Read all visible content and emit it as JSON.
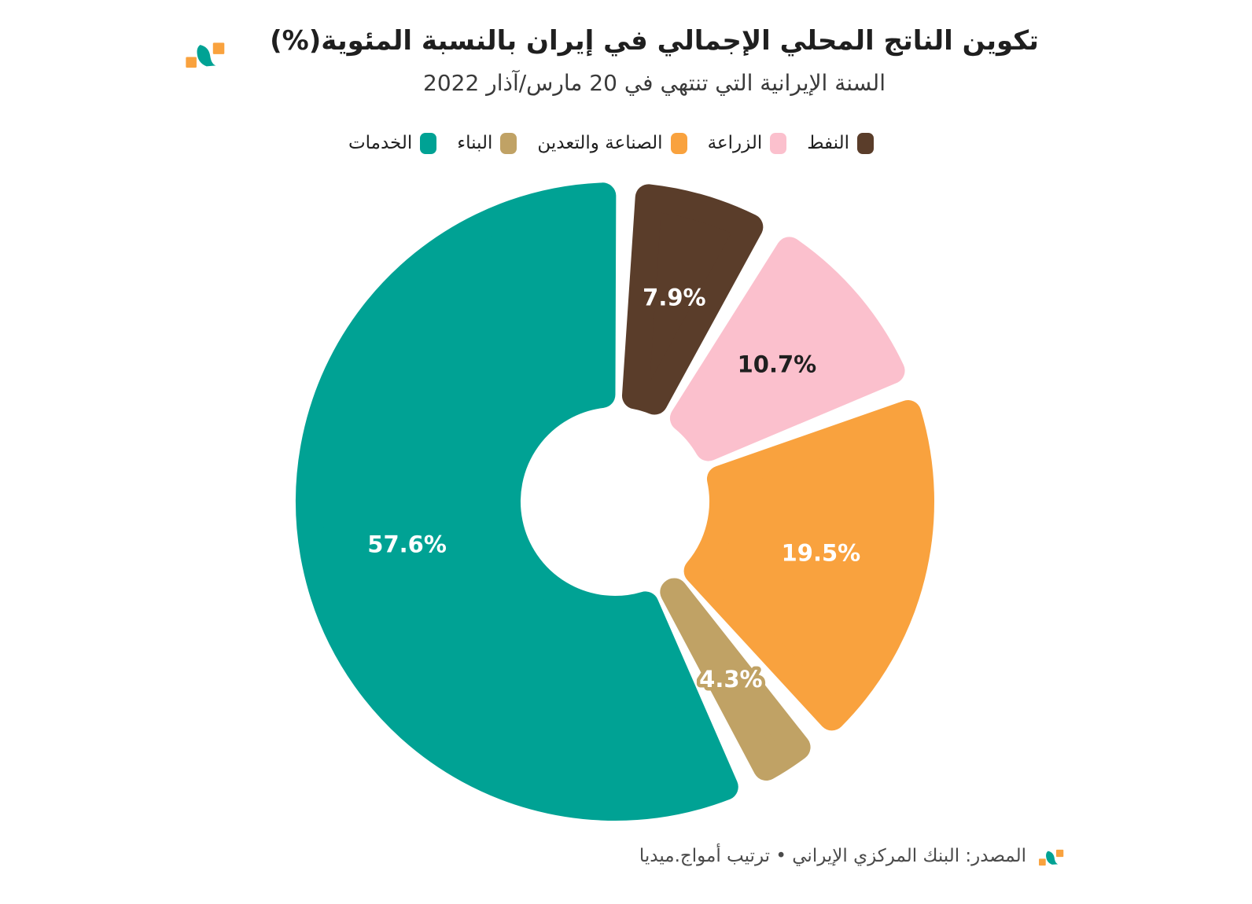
{
  "brand": {
    "teal": "#00A294",
    "orange": "#F9A23E"
  },
  "chart_data": {
    "type": "pie",
    "donut": true,
    "title": "تكوين الناتج المحلي الإجمالي في إيران بالنسبة المئوية(%)",
    "subtitle": "السنة الإيرانية التي تنتهي في 20 مارس/آذار 2022",
    "legend_position": "top",
    "direction": "clockwise",
    "start_angle_deg": 0,
    "hole_ratio": 0.3,
    "categories": [
      "النفط",
      "الزراعة",
      "الصناعة والتعدين",
      "البناء",
      "الخدمات"
    ],
    "slice_ids": [
      "oil",
      "agriculture",
      "industry-mining",
      "construction",
      "services"
    ],
    "values": [
      7.9,
      10.7,
      19.5,
      4.3,
      57.6
    ],
    "labels": [
      "7.9%",
      "10.7%",
      "19.5%",
      "4.3%",
      "57.6%"
    ],
    "colors": [
      "#5A3D2A",
      "#FBC0CD",
      "#F9A23E",
      "#C0A265",
      "#00A294"
    ],
    "label_colors": [
      "#FFFFFF",
      "#1F1F1F",
      "#FFFFFF",
      "#FFFFFF",
      "#FFFFFF"
    ],
    "label_outlines": [
      null,
      null,
      null,
      "#C0A265",
      null
    ]
  },
  "footer": {
    "source": "المصدر: البنك المركزي الإيراني • ترتيب أمواج.ميديا"
  }
}
